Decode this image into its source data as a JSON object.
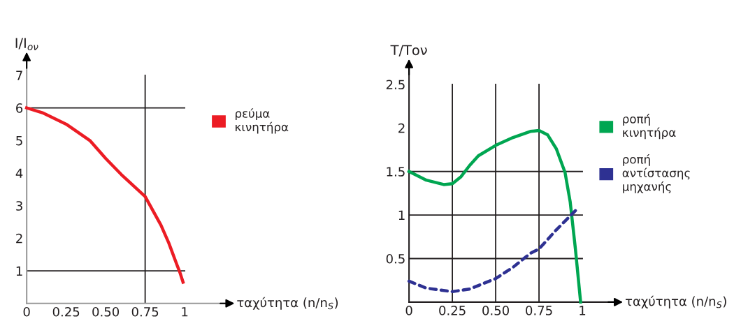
{
  "chart_data": [
    {
      "type": "line",
      "ylabel": "I/I$_{ον}$",
      "xlabel": "ταχύτητα (n/n$_{S}$)",
      "x": [
        0,
        0.1,
        0.25,
        0.4,
        0.5,
        0.6,
        0.75,
        0.85,
        0.9,
        0.95,
        0.97,
        0.99
      ],
      "series": [
        {
          "name": "ρεύμα\nκινητήρα",
          "color": "#ec1c24",
          "values": [
            6,
            5.85,
            5.5,
            5.0,
            4.45,
            3.95,
            3.28,
            2.4,
            1.85,
            1.2,
            0.95,
            0.65
          ]
        }
      ],
      "xlim": [
        0,
        1.29
      ],
      "ylim": [
        0,
        7.6
      ],
      "xticks": [
        0,
        {
          "value": 0.25,
          "label": "0.25"
        },
        {
          "value": 0.5,
          "label": "0.50"
        },
        {
          "value": 0.75,
          "label": "0.75"
        },
        1
      ],
      "yticks": [
        1,
        2,
        3,
        4,
        5,
        6,
        7
      ],
      "ref_lines": [
        {
          "axis": "y",
          "value": 1,
          "color": "#231f20"
        },
        {
          "axis": "y",
          "value": 6,
          "color": "#231f20"
        },
        {
          "axis": "x",
          "value": 0.75,
          "color": "#231f20"
        }
      ],
      "legend": "right",
      "grid": false
    },
    {
      "type": "line",
      "ylabel": "T/Tον",
      "xlabel": "ταχύτητα (n/n$_{S}$)",
      "series": [
        {
          "name": "ροπή\nκινητήρα",
          "color": "#00a651",
          "line_style": "solid",
          "x": [
            0,
            0.1,
            0.2,
            0.25,
            0.3,
            0.35,
            0.4,
            0.5,
            0.6,
            0.7,
            0.75,
            0.8,
            0.85,
            0.9,
            0.93,
            0.96,
            0.99
          ],
          "values": [
            1.5,
            1.4,
            1.35,
            1.36,
            1.44,
            1.57,
            1.68,
            1.8,
            1.89,
            1.96,
            1.97,
            1.92,
            1.76,
            1.49,
            1.15,
            0.61,
            0
          ]
        },
        {
          "name": "ροπή\nαντίστασης\nμηχανής",
          "color": "#2e3192",
          "line_style": "dashed",
          "x": [
            0,
            0.1,
            0.25,
            0.35,
            0.5,
            0.6,
            0.7,
            0.75,
            0.85,
            0.9,
            0.96
          ],
          "values": [
            0.24,
            0.16,
            0.12,
            0.15,
            0.27,
            0.4,
            0.56,
            0.61,
            0.83,
            0.93,
            1.05
          ]
        }
      ],
      "xlim": [
        0,
        1.21
      ],
      "ylim": [
        0,
        2.75
      ],
      "xticks": [
        0,
        {
          "value": 0.25,
          "label": "0.25"
        },
        {
          "value": 0.5,
          "label": "0.50"
        },
        {
          "value": 0.75,
          "label": "0.75"
        },
        1
      ],
      "yticks": [
        {
          "value": 0.5,
          "label": "0.5"
        },
        1,
        {
          "value": 1.5,
          "label": "1.5"
        },
        2,
        {
          "value": 2.5,
          "label": "2.5"
        }
      ],
      "ref_lines": [
        {
          "axis": "x",
          "value": 0.25,
          "color": "#231f20"
        },
        {
          "axis": "x",
          "value": 0.5,
          "color": "#231f20"
        },
        {
          "axis": "x",
          "value": 0.75,
          "color": "#231f20"
        },
        {
          "axis": "y",
          "value": 0.5,
          "color": "#231f20"
        },
        {
          "axis": "y",
          "value": 1,
          "color": "#231f20"
        },
        {
          "axis": "y",
          "value": 1.5,
          "color": "#231f20"
        }
      ],
      "legend": "right",
      "grid": false
    }
  ]
}
